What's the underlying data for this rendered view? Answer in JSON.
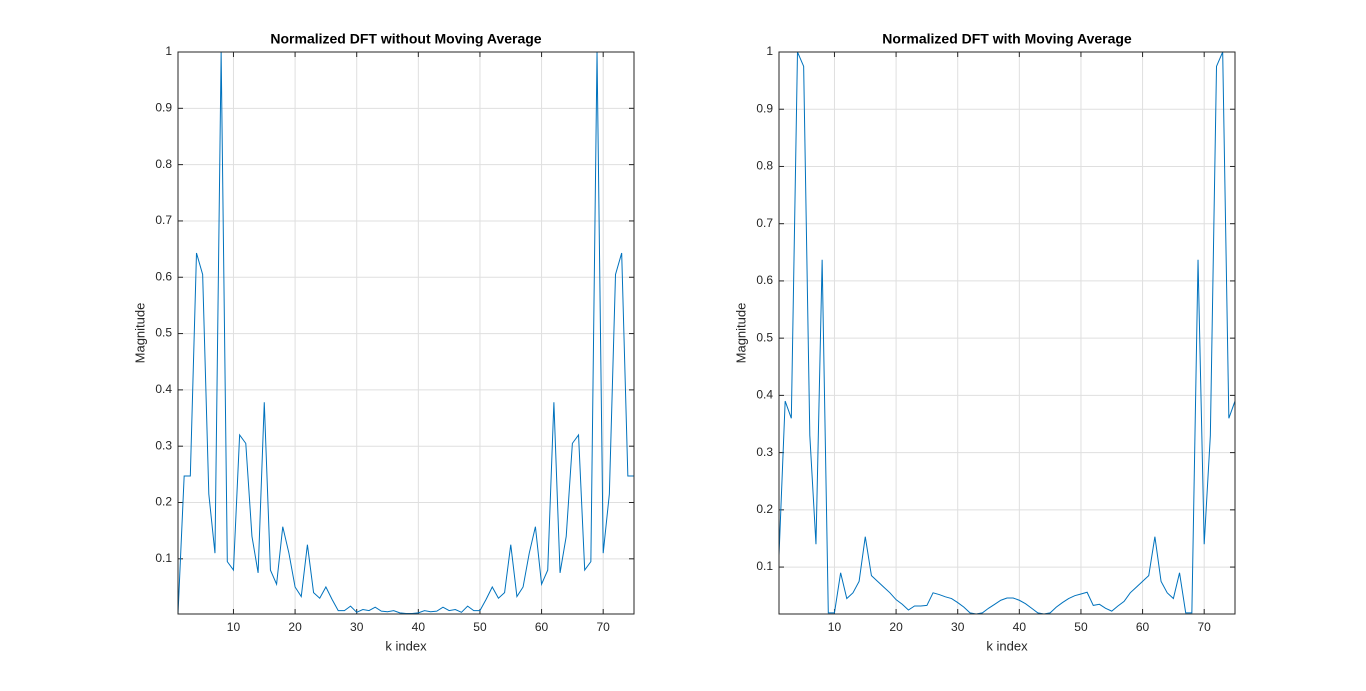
{
  "chart_data": [
    {
      "type": "line",
      "title": "Normalized DFT without Moving Average",
      "xlabel": "k index",
      "ylabel": "Magnitude",
      "x": [
        1,
        2,
        3,
        4,
        5,
        6,
        7,
        8,
        9,
        10,
        11,
        12,
        13,
        14,
        15,
        16,
        17,
        18,
        19,
        20,
        21,
        22,
        23,
        24,
        25,
        26,
        27,
        28,
        29,
        30,
        31,
        32,
        33,
        34,
        35,
        36,
        37,
        38,
        39,
        40,
        41,
        42,
        43,
        44,
        45,
        46,
        47,
        48,
        49,
        50,
        51,
        52,
        53,
        54,
        55,
        56,
        57,
        58,
        59,
        60,
        61,
        62,
        63,
        64,
        65,
        66,
        67,
        68,
        69,
        70,
        71,
        72,
        73,
        74,
        75
      ],
      "values": [
        0.002,
        0.247,
        0.247,
        0.643,
        0.605,
        0.215,
        0.11,
        1,
        0.095,
        0.08,
        0.32,
        0.305,
        0.14,
        0.075,
        0.378,
        0.08,
        0.055,
        0.157,
        0.11,
        0.05,
        0.033,
        0.125,
        0.04,
        0.03,
        0.05,
        0.028,
        0.008,
        0.008,
        0.016,
        0.005,
        0.01,
        0.008,
        0.014,
        0.007,
        0.006,
        0.008,
        0.004,
        0.003,
        0.003,
        0.004,
        0.008,
        0.006,
        0.007,
        0.014,
        0.008,
        0.01,
        0.005,
        0.016,
        0.008,
        0.008,
        0.028,
        0.05,
        0.03,
        0.04,
        0.125,
        0.033,
        0.05,
        0.11,
        0.157,
        0.055,
        0.08,
        0.378,
        0.075,
        0.14,
        0.305,
        0.32,
        0.08,
        0.095,
        1,
        0.11,
        0.215,
        0.605,
        0.643,
        0.247,
        0.247
      ],
      "color": "#0072bd",
      "xlim": [
        1,
        75
      ],
      "ylim": [
        0.002,
        1
      ],
      "xticks": [
        10,
        20,
        30,
        40,
        50,
        60,
        70
      ],
      "yticks": [
        0.1,
        0.2,
        0.3,
        0.4,
        0.5,
        0.6,
        0.7,
        0.8,
        0.9,
        1
      ],
      "grid": true
    },
    {
      "type": "line",
      "title": "Normalized DFT with Moving Average",
      "xlabel": "k index",
      "ylabel": "Magnitude",
      "x": [
        1,
        2,
        3,
        4,
        5,
        6,
        7,
        8,
        9,
        10,
        11,
        12,
        13,
        14,
        15,
        16,
        17,
        18,
        19,
        20,
        21,
        22,
        23,
        24,
        25,
        26,
        27,
        28,
        29,
        30,
        31,
        32,
        33,
        34,
        35,
        36,
        37,
        38,
        39,
        40,
        41,
        42,
        43,
        44,
        45,
        46,
        47,
        48,
        49,
        50,
        51,
        52,
        53,
        54,
        55,
        56,
        57,
        58,
        59,
        60,
        61,
        62,
        63,
        64,
        65,
        66,
        67,
        68,
        69,
        70,
        71,
        72,
        73,
        74,
        75
      ],
      "values": [
        0.12,
        0.39,
        0.36,
        1,
        0.975,
        0.33,
        0.14,
        0.637,
        0.02,
        0.02,
        0.09,
        0.045,
        0.055,
        0.075,
        0.153,
        0.085,
        0.075,
        0.065,
        0.055,
        0.043,
        0.035,
        0.025,
        0.032,
        0.032,
        0.033,
        0.055,
        0.052,
        0.048,
        0.045,
        0.038,
        0.03,
        0.02,
        0.018,
        0.02,
        0.028,
        0.035,
        0.042,
        0.046,
        0.046,
        0.042,
        0.036,
        0.028,
        0.02,
        0.018,
        0.02,
        0.03,
        0.038,
        0.045,
        0.05,
        0.053,
        0.056,
        0.033,
        0.035,
        0.028,
        0.023,
        0.032,
        0.04,
        0.055,
        0.065,
        0.075,
        0.085,
        0.153,
        0.075,
        0.055,
        0.045,
        0.09,
        0.02,
        0.02,
        0.637,
        0.14,
        0.33,
        0.975,
        1,
        0.36,
        0.39
      ],
      "color": "#0072bd",
      "xlim": [
        1,
        75
      ],
      "ylim": [
        0.018,
        1
      ],
      "xticks": [
        10,
        20,
        30,
        40,
        50,
        60,
        70
      ],
      "yticks": [
        0.1,
        0.2,
        0.3,
        0.4,
        0.5,
        0.6,
        0.7,
        0.8,
        0.9,
        1
      ],
      "grid": true
    }
  ]
}
